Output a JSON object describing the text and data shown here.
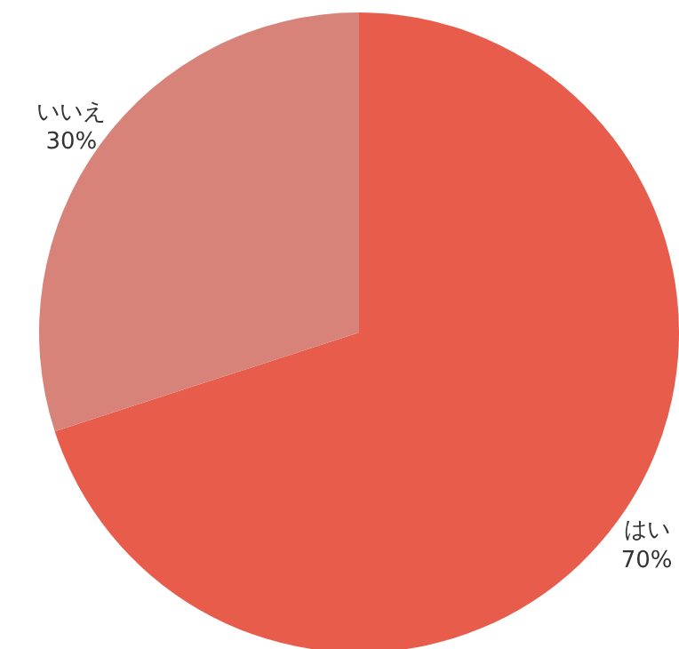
{
  "chart_data": {
    "type": "pie",
    "categories": [
      "はい",
      "いいえ"
    ],
    "values": [
      70,
      30
    ],
    "colors": [
      "#e85c4c",
      "#d7837a"
    ],
    "value_labels": [
      "70%",
      "30%"
    ]
  }
}
